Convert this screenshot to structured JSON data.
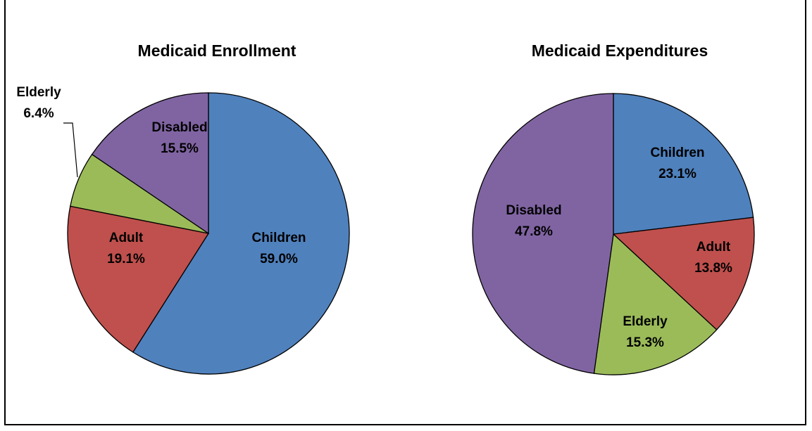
{
  "chart_data": [
    {
      "type": "pie",
      "title": "Medicaid Enrollment",
      "slices": [
        {
          "label": "Children",
          "value": 59.0,
          "display": "59.0%",
          "color": "#4F81BD"
        },
        {
          "label": "Adult",
          "value": 19.1,
          "display": "19.1%",
          "color": "#C0504D"
        },
        {
          "label": "Elderly",
          "value": 6.4,
          "display": "6.4%",
          "color": "#9BBB59"
        },
        {
          "label": "Disabled",
          "value": 15.5,
          "display": "15.5%",
          "color": "#8064A2"
        }
      ]
    },
    {
      "type": "pie",
      "title": "Medicaid Expenditures",
      "slices": [
        {
          "label": "Children",
          "value": 23.1,
          "display": "23.1%",
          "color": "#4F81BD"
        },
        {
          "label": "Adult",
          "value": 13.8,
          "display": "13.8%",
          "color": "#C0504D"
        },
        {
          "label": "Elderly",
          "value": 15.3,
          "display": "15.3%",
          "color": "#9BBB59"
        },
        {
          "label": "Disabled",
          "value": 47.8,
          "display": "47.8%",
          "color": "#8064A2"
        }
      ]
    }
  ]
}
